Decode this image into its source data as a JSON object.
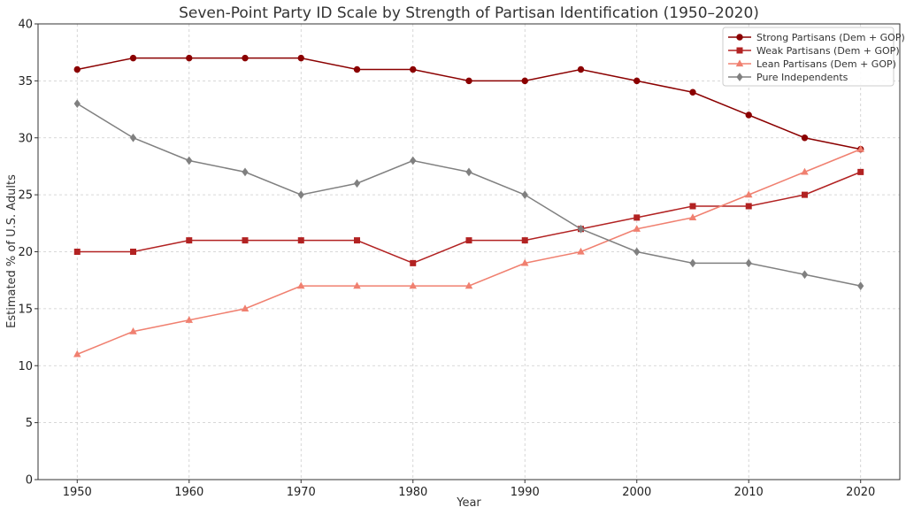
{
  "chart_data": {
    "type": "line",
    "title": "Seven-Point Party ID Scale by Strength of Partisan Identification (1950–2020)",
    "xlabel": "Year",
    "ylabel": "Estimated % of U.S. Adults",
    "x": [
      1950,
      1955,
      1960,
      1965,
      1970,
      1975,
      1980,
      1985,
      1990,
      1995,
      2000,
      2005,
      2010,
      2015,
      2020
    ],
    "xlim": [
      1946.5,
      2023.5
    ],
    "ylim": [
      0,
      40
    ],
    "xticks": [
      1950,
      1960,
      1970,
      1980,
      1990,
      2000,
      2010,
      2020
    ],
    "yticks": [
      0,
      5,
      10,
      15,
      20,
      25,
      30,
      35,
      40
    ],
    "grid": true,
    "legend_position": "top-right",
    "series": [
      {
        "name": "Strong Partisans (Dem + GOP)",
        "color": "#8b0000",
        "marker": "circle",
        "values": [
          36,
          37,
          37,
          37,
          37,
          36,
          36,
          35,
          35,
          36,
          35,
          34,
          32,
          30,
          29
        ]
      },
      {
        "name": "Weak Partisans (Dem + GOP)",
        "color": "#b22222",
        "marker": "square",
        "values": [
          20,
          20,
          21,
          21,
          21,
          21,
          19,
          21,
          21,
          22,
          23,
          24,
          24,
          25,
          27
        ]
      },
      {
        "name": "Lean Partisans (Dem + GOP)",
        "color": "#f08070",
        "marker": "triangle",
        "values": [
          11,
          13,
          14,
          15,
          17,
          17,
          17,
          17,
          19,
          20,
          22,
          23,
          25,
          27,
          29
        ]
      },
      {
        "name": "Pure Independents",
        "color": "#808080",
        "marker": "diamond",
        "values": [
          33,
          30,
          28,
          27,
          25,
          26,
          28,
          27,
          25,
          22,
          20,
          19,
          19,
          18,
          17
        ]
      }
    ]
  }
}
